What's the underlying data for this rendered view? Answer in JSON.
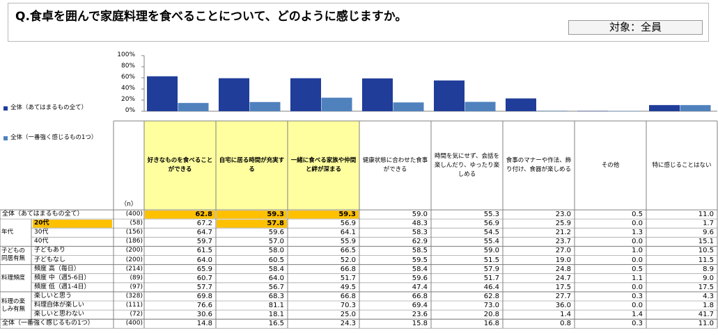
{
  "question": "Q.食卓を囲んで家庭料理を食べることについて、どのように感じますか。",
  "target_label": "対象：全員",
  "chart_data": {
    "type": "bar",
    "ylim": [
      0,
      100
    ],
    "yticks": [
      "100%",
      "80%",
      "60%",
      "40%",
      "20%",
      "0%"
    ],
    "categories": [
      "好きなものを食べることができる",
      "自宅に居る時間が充実する",
      "一緒に食べる家族や仲間と絆が深まる",
      "健康状態に合わせた食事ができる",
      "時間を気にせず、会話を楽しんだり、ゆったり楽しめる",
      "食事のマナーや作法、飾り付け、食器が楽しめる",
      "その他",
      "特に感じることはない"
    ],
    "series": [
      {
        "name": "全体（あてはまるもの全て）",
        "color": "#1f3d99",
        "values": [
          62.8,
          59.3,
          59.3,
          59.0,
          55.3,
          23.0,
          0.5,
          11.0
        ]
      },
      {
        "name": "全体（一番強く感じるもの1つ）",
        "color": "#4f81bd",
        "values": [
          14.8,
          16.5,
          24.3,
          15.8,
          16.8,
          0.8,
          0.3,
          11.0
        ]
      }
    ]
  },
  "table": {
    "n_header": "（n）",
    "highlight_cols": [
      0,
      1,
      2
    ],
    "rows": [
      {
        "group": "",
        "label": "全体（あてはまるもの全て）",
        "n": "(400)",
        "values": [
          "62.8",
          "59.3",
          "59.3",
          "59.0",
          "55.3",
          "23.0",
          "0.5",
          "11.0"
        ],
        "hl": [
          0,
          1,
          2
        ],
        "full": true
      },
      {
        "group": "年代",
        "label": "20代",
        "n": "(58)",
        "values": [
          "67.2",
          "57.8",
          "56.9",
          "48.3",
          "56.9",
          "25.9",
          "0.0",
          "1.7"
        ],
        "hl": [
          1
        ],
        "labelhl": true
      },
      {
        "group": "",
        "label": "30代",
        "n": "(156)",
        "values": [
          "64.7",
          "59.6",
          "64.1",
          "58.3",
          "54.5",
          "21.2",
          "1.3",
          "9.6"
        ],
        "hl": []
      },
      {
        "group": "",
        "label": "40代",
        "n": "(186)",
        "values": [
          "59.7",
          "57.0",
          "55.9",
          "62.9",
          "55.4",
          "23.7",
          "0.0",
          "15.1"
        ],
        "hl": []
      },
      {
        "group": "子どもの同居有無",
        "label": "子どもあり",
        "n": "(200)",
        "values": [
          "61.5",
          "58.0",
          "66.5",
          "58.5",
          "59.0",
          "27.0",
          "1.0",
          "10.5"
        ],
        "hl": []
      },
      {
        "group": "",
        "label": "子どもなし",
        "n": "(200)",
        "values": [
          "64.0",
          "60.5",
          "52.0",
          "59.5",
          "51.5",
          "19.0",
          "0.0",
          "11.5"
        ],
        "hl": []
      },
      {
        "group": "料理頻度",
        "label": "頻度 高（毎日）",
        "n": "(214)",
        "values": [
          "65.9",
          "58.4",
          "66.8",
          "58.4",
          "57.9",
          "24.8",
          "0.5",
          "8.9"
        ],
        "hl": []
      },
      {
        "group": "",
        "label": "頻度 中（週5-6日）",
        "n": "(89)",
        "values": [
          "60.7",
          "64.0",
          "51.7",
          "59.6",
          "51.7",
          "24.7",
          "1.1",
          "9.0"
        ],
        "hl": []
      },
      {
        "group": "",
        "label": "頻度 低（週1-4日）",
        "n": "(97)",
        "values": [
          "57.7",
          "56.7",
          "49.5",
          "47.4",
          "46.4",
          "17.5",
          "0.0",
          "17.5"
        ],
        "hl": []
      },
      {
        "group": "料理の楽しみ有無",
        "label": "楽しいと思う",
        "n": "(328)",
        "values": [
          "69.8",
          "68.3",
          "66.8",
          "66.8",
          "62.8",
          "27.7",
          "0.3",
          "4.3"
        ],
        "hl": []
      },
      {
        "group": "",
        "label": "料理自体が楽しい",
        "n": "(111)",
        "values": [
          "76.6",
          "81.1",
          "70.3",
          "69.4",
          "73.0",
          "36.0",
          "0.0",
          "1.8"
        ],
        "hl": []
      },
      {
        "group": "",
        "label": "楽しいと思わない",
        "n": "(72)",
        "values": [
          "30.6",
          "18.1",
          "25.0",
          "23.6",
          "20.8",
          "1.4",
          "1.4",
          "41.7"
        ],
        "hl": []
      },
      {
        "group": "",
        "label": "全体（一番強く感じるもの1つ）",
        "n": "(400)",
        "values": [
          "14.8",
          "16.5",
          "24.3",
          "15.8",
          "16.8",
          "0.8",
          "0.3",
          "11.0"
        ],
        "hl": [],
        "full": true
      }
    ],
    "groups": [
      {
        "label": "年代",
        "rows": [
          1,
          3
        ]
      },
      {
        "label": "子どもの同居有無",
        "rows": [
          4,
          5
        ]
      },
      {
        "label": "料理頻度",
        "rows": [
          6,
          8
        ]
      },
      {
        "label": "料理の楽しみ有無",
        "rows": [
          9,
          11
        ]
      }
    ]
  }
}
